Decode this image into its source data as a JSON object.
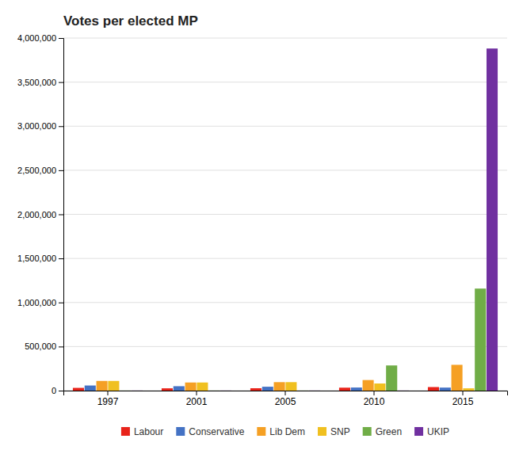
{
  "chart_data": {
    "type": "bar",
    "title": "Votes per elected MP",
    "categories": [
      "1997",
      "2001",
      "2005",
      "2010",
      "2015"
    ],
    "series": [
      {
        "name": "Labour",
        "color": "#e8231a",
        "values": [
          31000,
          26000,
          26897,
          33370,
          40290
        ]
      },
      {
        "name": "Conservative",
        "color": "#4472c4",
        "values": [
          58000,
          50000,
          44000,
          34979,
          34244
        ]
      },
      {
        "name": "Lib Dem",
        "color": "#f5a024",
        "values": [
          110000,
          92000,
          96000,
          119944,
          292612
        ]
      },
      {
        "name": "SNP",
        "color": "#f0c020",
        "values": [
          110000,
          92000,
          96000,
          80740,
          25972
        ]
      },
      {
        "name": "Green",
        "color": "#70ad47",
        "values": [
          1000,
          1000,
          1000,
          285616,
          1157613
        ]
      },
      {
        "name": "UKIP",
        "color": "#7030a0",
        "values": [
          1000,
          1000,
          1000,
          1000,
          3881129
        ]
      }
    ],
    "ylim": [
      0,
      4000000
    ],
    "yticks": [
      0,
      {
        "value": 500000,
        "label": "500,000"
      },
      {
        "value": 1000000,
        "label": "1,000,000"
      },
      {
        "value": 1500000,
        "label": "1,500,000"
      },
      {
        "value": 2000000,
        "label": "2,000,000"
      },
      {
        "value": 2500000,
        "label": "2,500,000"
      },
      {
        "value": 3000000,
        "label": "3,000,000"
      },
      {
        "value": 3500000,
        "label": "3,500,000"
      },
      {
        "value": 4000000,
        "label": "4,000,000"
      }
    ],
    "grid": true,
    "legend": "bottom"
  }
}
